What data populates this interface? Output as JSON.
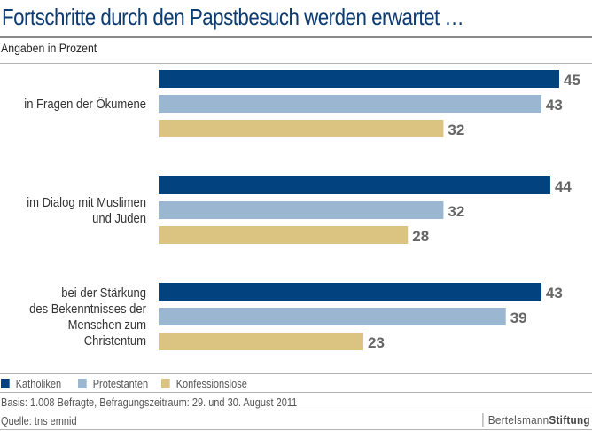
{
  "chart_data": {
    "type": "bar",
    "orientation": "horizontal",
    "title": "Fortschritte durch den Papstbesuch werden erwartet …",
    "subtitle": "Angaben in Prozent",
    "categories": [
      [
        "in Fragen der Ökumene"
      ],
      [
        "im Dialog mit Muslimen",
        "und Juden"
      ],
      [
        "bei der Stärkung",
        "des Bekenntnisses der",
        "Menschen zum",
        "Christentum"
      ]
    ],
    "series": [
      {
        "name": "Katholiken",
        "color": "#01427f",
        "values": [
          45,
          44,
          43
        ]
      },
      {
        "name": "Protestanten",
        "color": "#9ab6d1",
        "values": [
          43,
          32,
          39
        ]
      },
      {
        "name": "Konfessionslose",
        "color": "#dbc382",
        "values": [
          32,
          28,
          23
        ]
      }
    ],
    "xlim": [
      0,
      45
    ],
    "grid": false,
    "data_labels": true,
    "legend_placement": "bottom-left"
  },
  "footer": {
    "basis": "Basis: 1.008 Befragte, Befragungszeitraum: 29. und 30. August 2011",
    "source": "Quelle: tns emnid",
    "logo_part1": "Bertelsmann",
    "logo_part2": "Stiftung"
  }
}
